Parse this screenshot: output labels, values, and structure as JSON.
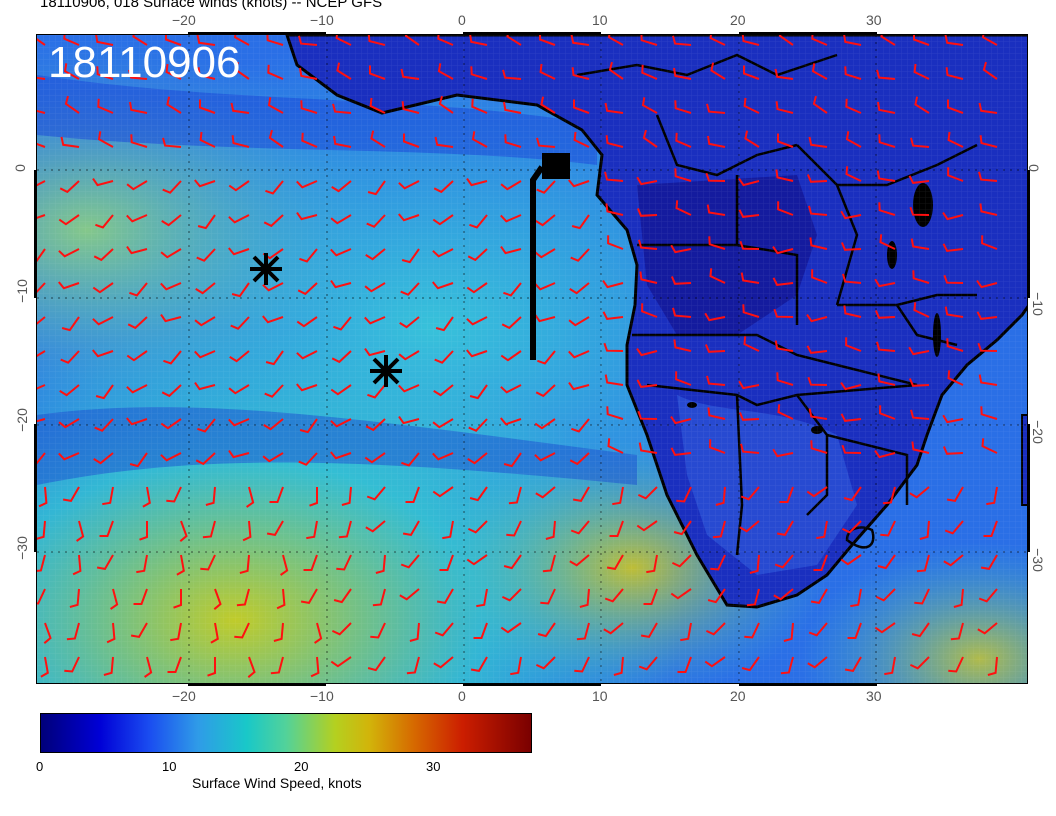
{
  "title": "18110906, 018 Surface winds (knots) -- NCEP GFS",
  "stamp": "18110906",
  "x_ticks_top": [
    "−20",
    "−10",
    "0",
    "10",
    "20",
    "30"
  ],
  "x_ticks_bottom": [
    "−20",
    "−10",
    "0",
    "10",
    "20",
    "30"
  ],
  "y_ticks_left": [
    "0",
    "−10",
    "−20",
    "−30"
  ],
  "y_ticks_right": [
    "0",
    "−10",
    "−20",
    "−30"
  ],
  "colorbar": {
    "label": "Surface Wind Speed, knots",
    "ticks": [
      "0",
      "10",
      "20",
      "30"
    ],
    "colors": [
      "#00007a",
      "#0000d6",
      "#2f9be8",
      "#19c8c8",
      "#b4d020",
      "#d66a00",
      "#cc1e00",
      "#7a0000"
    ]
  },
  "colors": {
    "ocean_base": "#1f5fe0",
    "land_base": "#1a2db8",
    "barb": "#ff1010",
    "coast": "#000000"
  },
  "markers": [
    {
      "type": "asterisk",
      "lon": -14.5,
      "lat": -8.4
    },
    {
      "type": "asterisk",
      "lon": -5.8,
      "lat": -16.3
    },
    {
      "type": "square",
      "lon": 6.5,
      "lat": 0.1
    }
  ]
}
